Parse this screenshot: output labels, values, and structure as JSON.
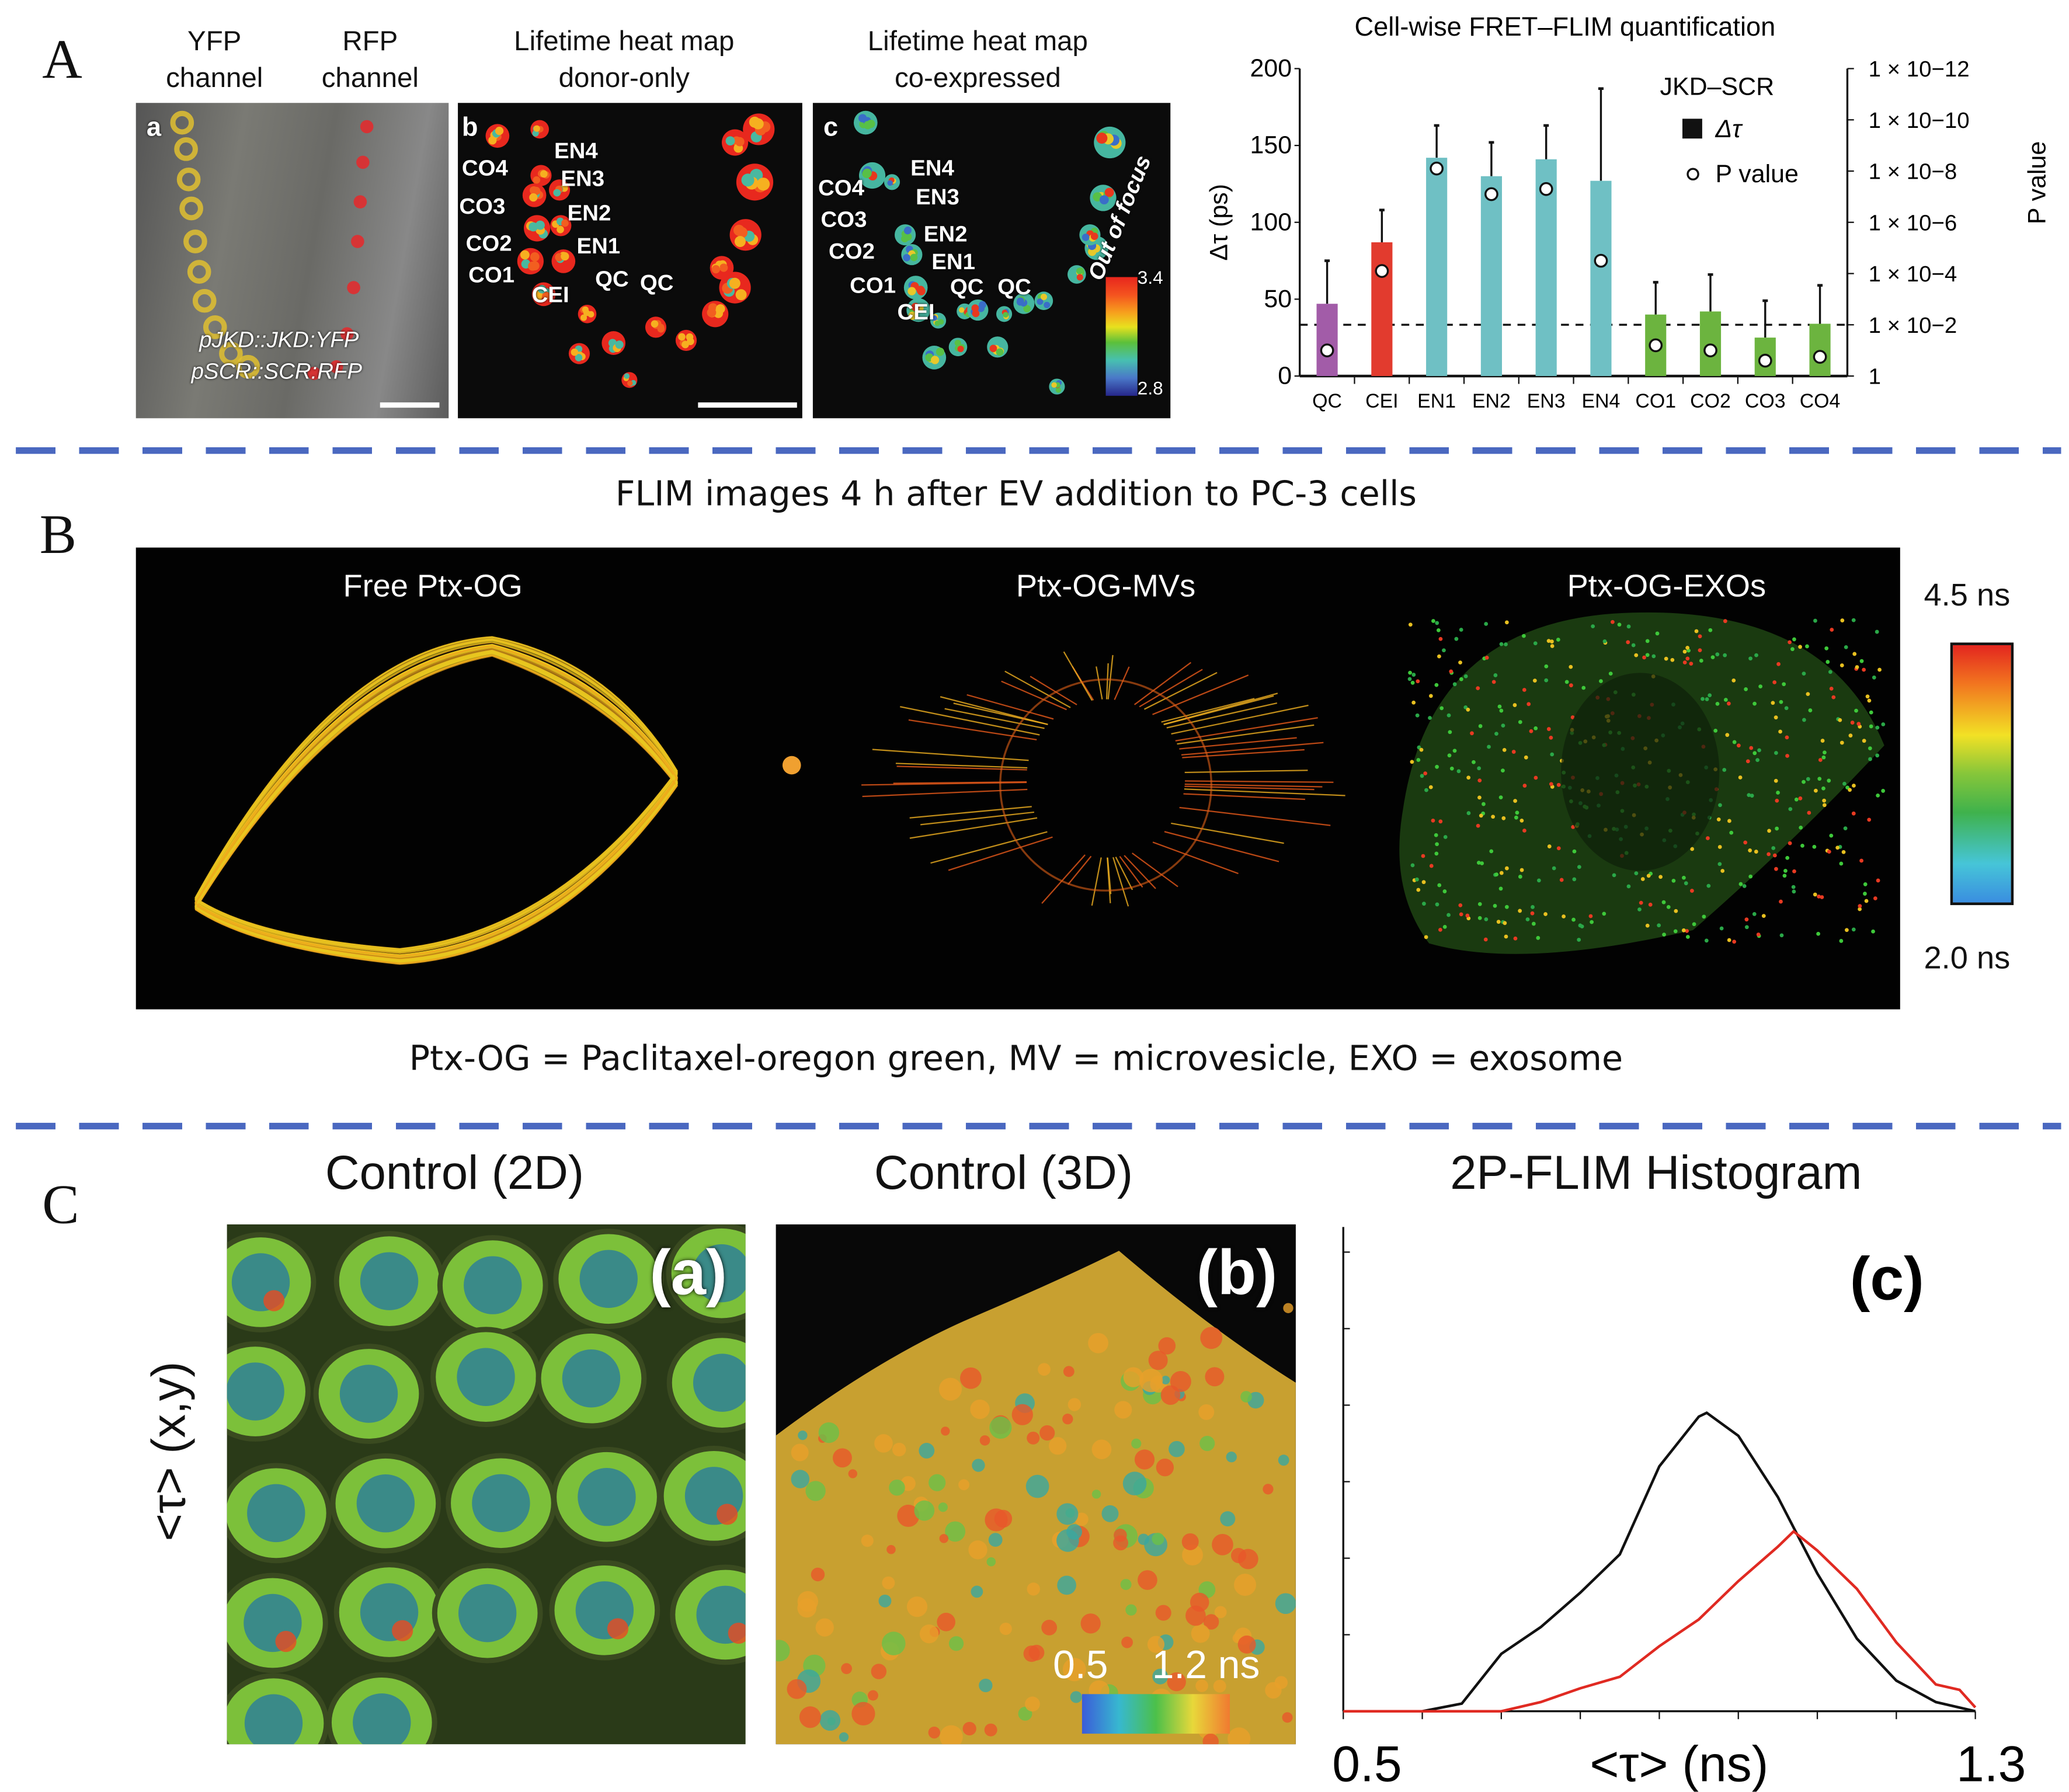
{
  "panel_a": {
    "label": "A",
    "headers": {
      "yfp": [
        "YFP",
        "channel"
      ],
      "rfp": [
        "RFP",
        "channel"
      ],
      "donor": [
        "Lifetime heat map",
        "donor-only"
      ],
      "coexp": [
        "Lifetime heat map",
        "co-expressed"
      ]
    },
    "image_a": {
      "letter": "a",
      "construct1": "pJKD::JKD:YFP",
      "construct2": "pSCR::SCR:RFP"
    },
    "image_b": {
      "letter": "b",
      "cells": [
        "EN4",
        "CO4",
        "EN3",
        "CO3",
        "EN2",
        "CO2",
        "EN1",
        "CO1",
        "CEI",
        "QC",
        "QC"
      ]
    },
    "image_c": {
      "letter": "c",
      "cells": [
        "EN4",
        "CO4",
        "EN3",
        "CO3",
        "EN2",
        "CO2",
        "EN1",
        "CO1",
        "CEI",
        "QC",
        "QC"
      ],
      "out_of_focus": "Out of focus",
      "scale_max": "3.4",
      "scale_min": "2.8"
    }
  },
  "panel_b": {
    "label": "B",
    "title": "FLIM images 4 h after EV addition to PC-3 cells",
    "images": [
      "Free Ptx-OG",
      "Ptx-OG-MVs",
      "Ptx-OG-EXOs"
    ],
    "colorbar_max": "4.5 ns",
    "colorbar_min": "2.0 ns",
    "caption": "Ptx-OG = Paclitaxel-oregon green, MV = microvesicle, EXO = exosome"
  },
  "panel_c": {
    "label": "C",
    "titles": [
      "Control (2D)",
      "Control (3D)",
      "2P-FLIM Histogram"
    ],
    "yaxis_label": "<τ> (x,y)",
    "image_a_letter": "(a)",
    "image_b_letter": "(b)",
    "scale_text": "0.5    1.2 ns"
  },
  "chart_data": [
    {
      "type": "bar",
      "title": "Cell-wise FRET–FLIM quantification",
      "ylabel": "Δτ (ps)",
      "y2label": "P value",
      "ylim": [
        0,
        200
      ],
      "yticks": [
        "0",
        "50",
        "100",
        "150",
        "200"
      ],
      "y2ticks": [
        "1",
        "1 × 10−2",
        "1 × 10−4",
        "1 × 10−6",
        "1 × 10−8",
        "1 × 10−10",
        "1 × 10−12"
      ],
      "legend": {
        "title": "JKD–SCR",
        "entries": [
          "Δτ",
          "P value"
        ],
        "position": "top-right"
      },
      "categories": [
        "QC",
        "CEI",
        "EN1",
        "EN2",
        "EN3",
        "EN4",
        "CO1",
        "CO2",
        "CO3",
        "CO4"
      ],
      "values": [
        47,
        87,
        142,
        130,
        141,
        127,
        40,
        42,
        25,
        34
      ],
      "error_upper": [
        75,
        108,
        163,
        152,
        163,
        187,
        61,
        66,
        49,
        59
      ],
      "neg_log10_p": [
        1.0,
        4.1,
        8.1,
        7.1,
        7.3,
        4.5,
        1.2,
        1.0,
        0.6,
        0.75
      ],
      "threshold_neg_log10_p": 2,
      "colors": [
        "#a25ca8",
        "#e23b2e",
        "#6fc0c4",
        "#6fc0c4",
        "#6fc0c4",
        "#6fc0c4",
        "#6cb43f",
        "#6cb43f",
        "#6cb43f",
        "#6cb43f"
      ]
    },
    {
      "type": "line",
      "title": "2P-FLIM Histogram",
      "panel_letter": "(c)",
      "xlabel": "<τ> (ns)",
      "xlim": [
        0.5,
        1.3
      ],
      "xtick_labels": [
        "0.5",
        "1.3"
      ],
      "ylim": [
        0,
        6.3
      ],
      "series": [
        {
          "name": "2D",
          "color": "#111111",
          "x": [
            0.5,
            0.6,
            0.65,
            0.7,
            0.75,
            0.8,
            0.85,
            0.9,
            0.95,
            0.96,
            1.0,
            1.05,
            1.1,
            1.15,
            1.2,
            1.25,
            1.3
          ],
          "y": [
            0,
            0,
            0.1,
            0.75,
            1.1,
            1.55,
            2.05,
            3.2,
            3.85,
            3.9,
            3.6,
            2.8,
            1.8,
            0.95,
            0.4,
            0.12,
            0
          ]
        },
        {
          "name": "3D",
          "color": "#e02a22",
          "x": [
            0.5,
            0.7,
            0.75,
            0.8,
            0.85,
            0.9,
            0.95,
            1.0,
            1.05,
            1.07,
            1.1,
            1.15,
            1.2,
            1.25,
            1.28,
            1.3
          ],
          "y": [
            0,
            0,
            0.12,
            0.3,
            0.45,
            0.85,
            1.2,
            1.7,
            2.15,
            2.35,
            2.1,
            1.6,
            0.9,
            0.35,
            0.28,
            0.05
          ]
        }
      ]
    }
  ]
}
